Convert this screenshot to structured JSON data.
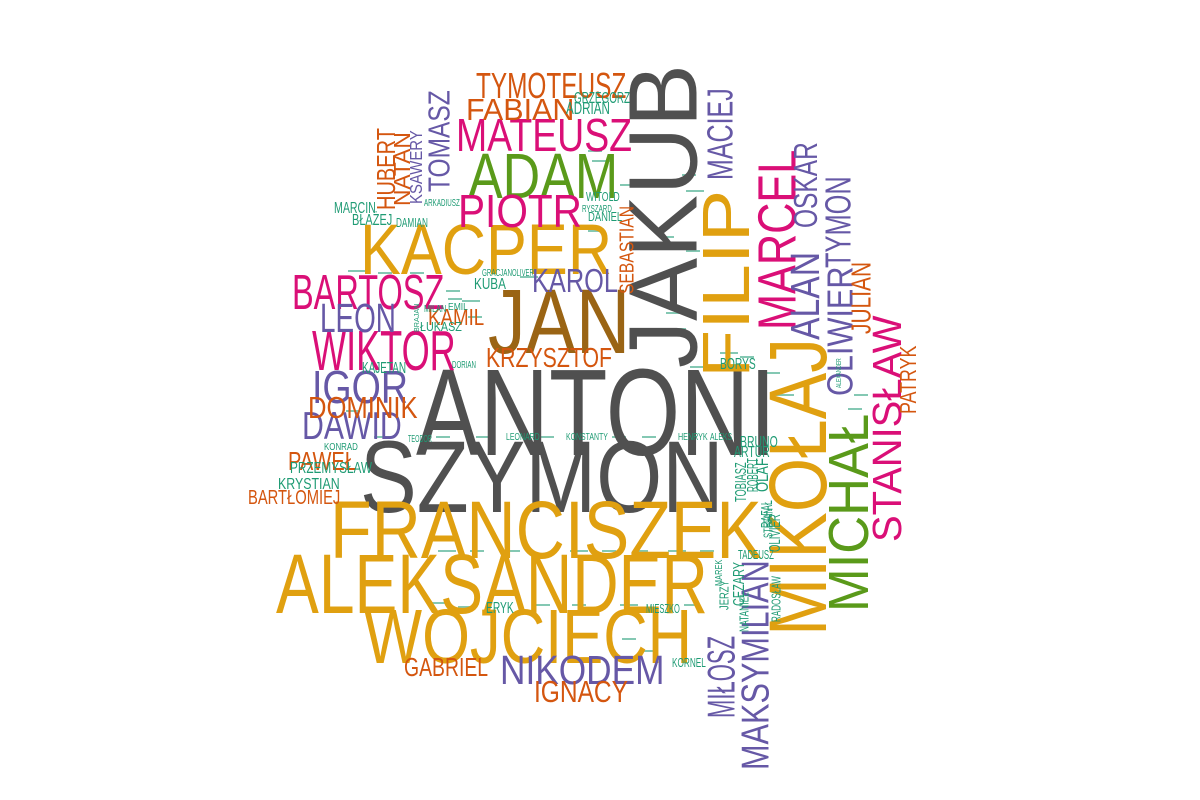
{
  "palette": {
    "gray": "#505050",
    "orange": "#D4560F",
    "gold": "#E0A010",
    "brown": "#9A6414",
    "magenta": "#DA0F77",
    "green": "#5A9A1A",
    "purple": "#6658A6",
    "teal": "#1F9B74"
  },
  "words": [
    {
      "text": "ANTONI",
      "c": "gray"
    },
    {
      "text": "SZYMON",
      "c": "gray"
    },
    {
      "text": "JAKUB",
      "c": "gray"
    },
    {
      "text": "JAN",
      "c": "brown"
    },
    {
      "text": "FRANCISZEK",
      "c": "gold"
    },
    {
      "text": "ALEKSANDER",
      "c": "gold"
    },
    {
      "text": "WOJCIECH",
      "c": "gold"
    },
    {
      "text": "KACPER",
      "c": "gold"
    },
    {
      "text": "FILIP",
      "c": "gold"
    },
    {
      "text": "MIKOŁAJ",
      "c": "gold"
    },
    {
      "text": "ADAM",
      "c": "green"
    },
    {
      "text": "MICHAŁ",
      "c": "green"
    },
    {
      "text": "MARCEL",
      "c": "magenta"
    },
    {
      "text": "STANISŁAW",
      "c": "magenta"
    },
    {
      "text": "BARTOSZ",
      "c": "magenta"
    },
    {
      "text": "WIKTOR",
      "c": "magenta"
    },
    {
      "text": "MATEUSZ",
      "c": "magenta"
    },
    {
      "text": "PIOTR",
      "c": "magenta"
    },
    {
      "text": "NIKODEM",
      "c": "purple"
    },
    {
      "text": "MAKSYMILIAN",
      "c": "purple"
    },
    {
      "text": "MIŁOSZ",
      "c": "purple"
    },
    {
      "text": "IGOR",
      "c": "purple"
    },
    {
      "text": "LEON",
      "c": "purple"
    },
    {
      "text": "DAWID",
      "c": "purple"
    },
    {
      "text": "KAROL",
      "c": "purple"
    },
    {
      "text": "ALAN",
      "c": "purple"
    },
    {
      "text": "OLIWIER",
      "c": "purple"
    },
    {
      "text": "TYMON",
      "c": "purple"
    },
    {
      "text": "OSKAR",
      "c": "purple"
    },
    {
      "text": "MACIEJ",
      "c": "purple"
    },
    {
      "text": "TOMASZ",
      "c": "purple"
    },
    {
      "text": "TYMOTEUSZ",
      "c": "orange"
    },
    {
      "text": "FABIAN",
      "c": "orange"
    },
    {
      "text": "DOMINIK",
      "c": "orange"
    },
    {
      "text": "KRZYSZTOF",
      "c": "orange"
    },
    {
      "text": "IGNACY",
      "c": "orange"
    },
    {
      "text": "GABRIEL",
      "c": "orange"
    },
    {
      "text": "PAWEŁ",
      "c": "orange"
    },
    {
      "text": "BARTŁOMIEJ",
      "c": "orange"
    },
    {
      "text": "HUBERT",
      "c": "orange"
    },
    {
      "text": "NATAN",
      "c": "orange"
    },
    {
      "text": "KAMIL",
      "c": "orange"
    },
    {
      "text": "JULIAN",
      "c": "orange"
    },
    {
      "text": "PATRYK",
      "c": "orange"
    },
    {
      "text": "SEBASTIAN",
      "c": "orange"
    },
    {
      "text": "KSAWERY",
      "c": "purple"
    },
    {
      "text": "ADRIAN",
      "c": "teal"
    },
    {
      "text": "GRZEGORZ",
      "c": "teal"
    },
    {
      "text": "MARCIN",
      "c": "teal"
    },
    {
      "text": "BŁAŻEJ",
      "c": "teal"
    },
    {
      "text": "DAMIAN",
      "c": "teal"
    },
    {
      "text": "WITOLD",
      "c": "teal"
    },
    {
      "text": "RYSZARD",
      "c": "teal"
    },
    {
      "text": "DANIEL",
      "c": "teal"
    },
    {
      "text": "KUBA",
      "c": "teal"
    },
    {
      "text": "MILAN",
      "c": "teal"
    },
    {
      "text": "EMIL",
      "c": "teal"
    },
    {
      "text": "ŁUKASZ",
      "c": "teal"
    },
    {
      "text": "KAJETAN",
      "c": "teal"
    },
    {
      "text": "KONRAD",
      "c": "teal"
    },
    {
      "text": "PRZEMYSŁAW",
      "c": "teal"
    },
    {
      "text": "KRYSTIAN",
      "c": "teal"
    },
    {
      "text": "BORYS",
      "c": "teal"
    },
    {
      "text": "BRUNO",
      "c": "teal"
    },
    {
      "text": "ARTUR",
      "c": "teal"
    },
    {
      "text": "OLAF",
      "c": "teal"
    },
    {
      "text": "TOBIASZ",
      "c": "teal"
    },
    {
      "text": "ROBERT",
      "c": "teal"
    },
    {
      "text": "RAFAŁ",
      "c": "teal"
    },
    {
      "text": "STEFAN",
      "c": "teal"
    },
    {
      "text": "OLIVIER",
      "c": "teal"
    },
    {
      "text": "TADEUSZ",
      "c": "teal"
    },
    {
      "text": "CEZARY",
      "c": "teal"
    },
    {
      "text": "JERZY",
      "c": "teal"
    },
    {
      "text": "MAREK",
      "c": "teal"
    },
    {
      "text": "NATANIEL",
      "c": "teal"
    },
    {
      "text": "RADOSŁAW",
      "c": "teal"
    },
    {
      "text": "ERYK",
      "c": "teal"
    },
    {
      "text": "MIESZKO",
      "c": "teal"
    },
    {
      "text": "KORNEL",
      "c": "teal"
    },
    {
      "text": "LEONARD",
      "c": "teal"
    },
    {
      "text": "KONSTANTY",
      "c": "teal"
    },
    {
      "text": "HENRYK",
      "c": "teal"
    },
    {
      "text": "ALEKS",
      "c": "teal"
    },
    {
      "text": "GRACJAN",
      "c": "teal"
    },
    {
      "text": "OLIVER",
      "c": "teal"
    },
    {
      "text": "ARKADIUSZ",
      "c": "teal"
    },
    {
      "text": "ALEXANDER",
      "c": "teal"
    },
    {
      "text": "BRAJAN",
      "c": "teal"
    },
    {
      "text": "DORIAN",
      "c": "teal"
    },
    {
      "text": "TEODOR",
      "c": "teal"
    }
  ]
}
